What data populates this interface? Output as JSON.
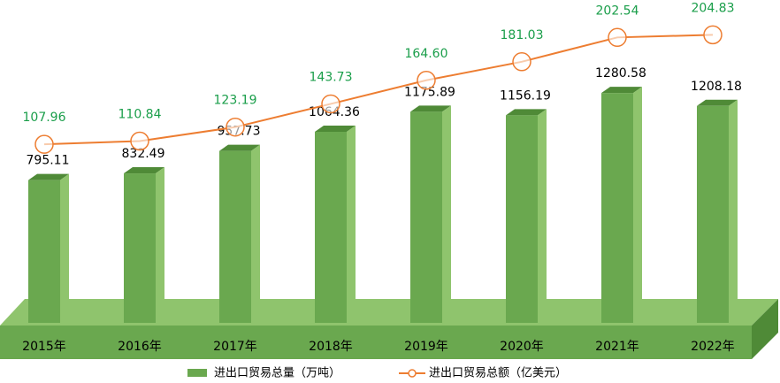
{
  "chart_data": {
    "type": "bar-line",
    "categories": [
      "2015年",
      "2016年",
      "2017年",
      "2018年",
      "2019年",
      "2020年",
      "2021年",
      "2022年"
    ],
    "series": [
      {
        "name": "进出口贸易总量（万吨）",
        "type": "bar",
        "color": "#6aa84f",
        "values": [
          795.11,
          832.49,
          957.73,
          1064.36,
          1175.89,
          1156.19,
          1280.58,
          1208.18
        ]
      },
      {
        "name": "进出口贸易总额（亿美元）",
        "type": "line",
        "axis": "y2",
        "color": "#ed7d31",
        "values": [
          107.96,
          110.84,
          123.19,
          143.73,
          164.6,
          181.03,
          202.54,
          204.83
        ],
        "value_labels": [
          "107.96",
          "110.84",
          "123.19",
          "143.73",
          "164.60",
          "181.03",
          "202.54",
          "204.83"
        ]
      }
    ],
    "ylim": [
      0,
      1700
    ],
    "y2lim": [
      -50,
      220
    ]
  }
}
